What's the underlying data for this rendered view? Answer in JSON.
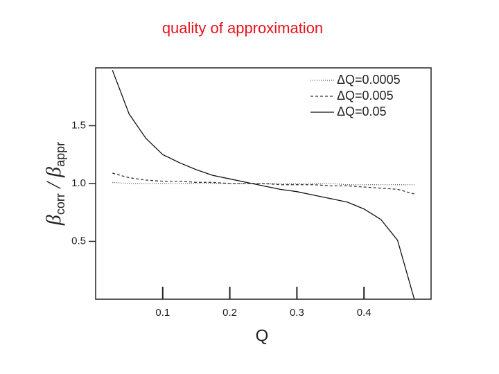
{
  "chart_data": {
    "type": "line",
    "title": "quality of approximation",
    "xlabel": "Q",
    "ylabel": [
      "β",
      "corr",
      " / β",
      "appr"
    ],
    "x": [
      0.025,
      0.05,
      0.075,
      0.1,
      0.125,
      0.15,
      0.175,
      0.2,
      0.225,
      0.25,
      0.275,
      0.3,
      0.325,
      0.35,
      0.375,
      0.4,
      0.425,
      0.45,
      0.475
    ],
    "series": [
      {
        "name": "ΔQ=0.0005",
        "color": "#555555",
        "dash": "1 2",
        "values": [
          1.01,
          1.0,
          1.0,
          1.0,
          1.0,
          1.0,
          1.0,
          1.0,
          1.0,
          1.0,
          1.0,
          1.0,
          1.0,
          1.0,
          0.99,
          0.99,
          0.99,
          0.99,
          0.99
        ]
      },
      {
        "name": "ΔQ=0.005",
        "color": "#333333",
        "dash": "4 3",
        "values": [
          1.09,
          1.05,
          1.03,
          1.02,
          1.02,
          1.01,
          1.01,
          1.0,
          1.0,
          1.0,
          0.99,
          0.99,
          0.99,
          0.98,
          0.98,
          0.97,
          0.96,
          0.95,
          0.91
        ]
      },
      {
        "name": "ΔQ=0.05",
        "color": "#111111",
        "dash": "none",
        "values": [
          1.98,
          1.6,
          1.39,
          1.25,
          1.18,
          1.12,
          1.07,
          1.04,
          1.01,
          0.98,
          0.95,
          0.93,
          0.9,
          0.87,
          0.84,
          0.78,
          0.69,
          0.51,
          0.0
        ]
      }
    ],
    "xlim": [
      0,
      0.5
    ],
    "ylim": [
      0,
      2
    ],
    "xticks": [
      0.1,
      0.2,
      0.3,
      0.4
    ],
    "yticks": [
      0.5,
      {
        "value": 1,
        "label": "1.0"
      },
      1.5
    ],
    "legend": "upper right"
  }
}
